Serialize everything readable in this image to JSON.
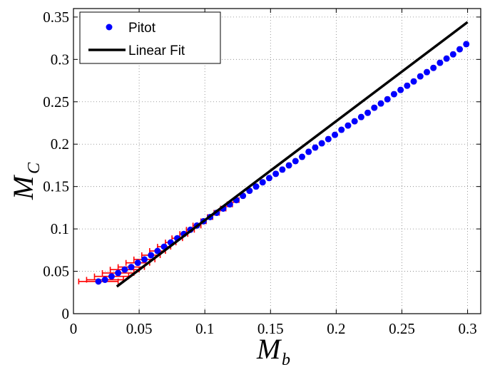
{
  "chart_data": {
    "type": "scatter",
    "title": "",
    "xlabel": {
      "base": "M",
      "sub": "b"
    },
    "ylabel": {
      "base": "M",
      "sub": "C"
    },
    "xlim": [
      0,
      0.31
    ],
    "ylim": [
      0,
      0.36
    ],
    "xticks": [
      0,
      0.05,
      0.1,
      0.15,
      0.2,
      0.25,
      0.3
    ],
    "xtick_labels": [
      "0",
      "0.05",
      "0.1",
      "0.15",
      "0.2",
      "0.25",
      "0.3"
    ],
    "yticks": [
      0,
      0.05,
      0.1,
      0.15,
      0.2,
      0.25,
      0.3,
      0.35
    ],
    "ytick_labels": [
      "0",
      "0.05",
      "0.1",
      "0.15",
      "0.2",
      "0.25",
      "0.3",
      "0.35"
    ],
    "grid": true,
    "legend": {
      "placement": "top-left",
      "entries": [
        "Pitot",
        "Linear Fit"
      ]
    },
    "colors": {
      "pitot": "#0000ff",
      "fit": "#000000",
      "errorbar": "#ff0000"
    },
    "series": [
      {
        "name": "Pitot",
        "type": "scatter",
        "x": [
          0.019,
          0.024,
          0.029,
          0.034,
          0.039,
          0.044,
          0.049,
          0.054,
          0.059,
          0.064,
          0.069,
          0.074,
          0.079,
          0.084,
          0.089,
          0.094,
          0.099,
          0.104,
          0.109,
          0.114,
          0.119,
          0.124,
          0.129,
          0.134,
          0.139,
          0.144,
          0.149,
          0.154,
          0.159,
          0.164,
          0.169,
          0.174,
          0.179,
          0.184,
          0.189,
          0.194,
          0.199,
          0.204,
          0.209,
          0.214,
          0.219,
          0.224,
          0.229,
          0.234,
          0.239,
          0.244,
          0.249,
          0.254,
          0.259,
          0.264,
          0.269,
          0.274,
          0.279,
          0.284,
          0.289,
          0.294,
          0.299
        ],
        "y": [
          0.038,
          0.04,
          0.044,
          0.048,
          0.052,
          0.055,
          0.06,
          0.064,
          0.069,
          0.074,
          0.079,
          0.084,
          0.089,
          0.094,
          0.099,
          0.104,
          0.109,
          0.114,
          0.119,
          0.124,
          0.129,
          0.134,
          0.139,
          0.145,
          0.15,
          0.155,
          0.16,
          0.165,
          0.17,
          0.175,
          0.18,
          0.185,
          0.191,
          0.196,
          0.201,
          0.206,
          0.211,
          0.217,
          0.222,
          0.227,
          0.232,
          0.237,
          0.243,
          0.248,
          0.253,
          0.259,
          0.264,
          0.269,
          0.274,
          0.28,
          0.285,
          0.29,
          0.296,
          0.301,
          0.306,
          0.312,
          0.318
        ],
        "xerr": [
          0.015,
          0.014,
          0.013,
          0.012,
          0.011,
          0.01,
          0.009,
          0.008,
          0.007,
          0.006,
          0.005,
          0.004,
          0.004,
          0.003,
          0.003,
          0.003,
          0.002,
          0.002,
          0.002,
          0.002,
          0.002,
          0.002,
          0.001,
          0.001,
          0.001,
          0.001,
          0.001,
          0.001,
          0.001,
          0.001,
          0.001,
          0.001,
          0.001,
          0.001,
          0.001,
          0.001,
          0.001,
          0.001,
          0.001,
          0.001,
          0.001,
          0.001,
          0.001,
          0.001,
          0.001,
          0.001,
          0.001,
          0.001,
          0.001,
          0.001,
          0.001,
          0.001,
          0.001,
          0.001,
          0.001,
          0.001,
          0.001
        ]
      },
      {
        "name": "Linear Fit",
        "type": "line",
        "x": [
          0.033,
          0.3
        ],
        "y": [
          0.032,
          0.344
        ]
      }
    ]
  }
}
